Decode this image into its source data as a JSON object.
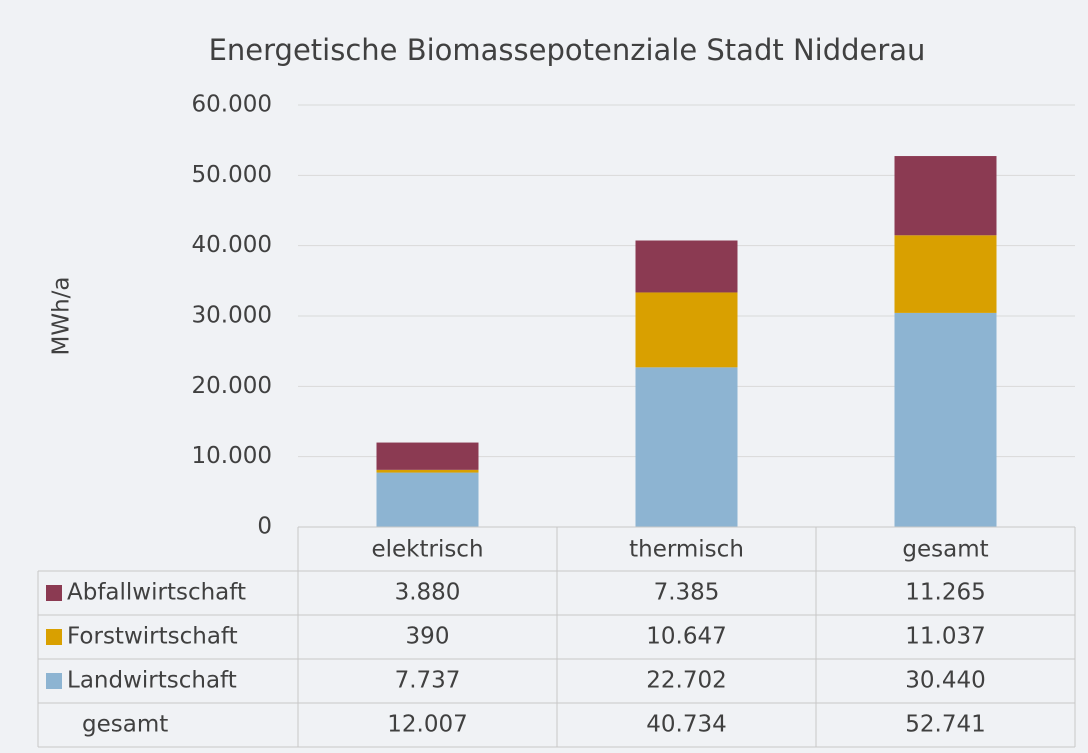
{
  "chart_data": {
    "type": "stacked_bar",
    "title": "Energetische Biomassepotenziale Stadt Nidderau",
    "y_label": "MWh/a",
    "categories": [
      "elektrisch",
      "thermisch",
      "gesamt"
    ],
    "series": [
      {
        "name": "Landwirtschaft",
        "color": "#8db4d2",
        "values": [
          7737,
          22702,
          30440
        ],
        "value_labels": [
          "7.737",
          "22.702",
          "30.440"
        ]
      },
      {
        "name": "Forstwirtschaft",
        "color": "#d9a000",
        "values": [
          390,
          10647,
          11037
        ],
        "value_labels": [
          "390",
          "10.647",
          "11.037"
        ]
      },
      {
        "name": "Abfallwirtschaft",
        "color": "#8b3a52",
        "values": [
          3880,
          7385,
          11265
        ],
        "value_labels": [
          "3.880",
          "7.385",
          "11.265"
        ]
      }
    ],
    "totals": {
      "name": "gesamt",
      "values": [
        12007,
        40734,
        52741
      ],
      "value_labels": [
        "12.007",
        "40.734",
        "52.741"
      ]
    },
    "ylim": [
      0,
      60000
    ],
    "yticks": [
      0,
      {
        "value": 10000,
        "label": "10.000"
      },
      {
        "value": 20000,
        "label": "20.000"
      },
      {
        "value": 30000,
        "label": "30.000"
      },
      {
        "value": 40000,
        "label": "40.000"
      },
      {
        "value": 50000,
        "label": "50.000"
      },
      {
        "value": 60000,
        "label": "60.000"
      }
    ],
    "grid": true
  }
}
